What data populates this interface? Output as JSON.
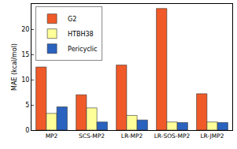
{
  "chart_data": {
    "type": "bar",
    "categories": [
      "MP2",
      "SCS-MP2",
      "LR-MP2",
      "LR-SOS-MP2",
      "LR-JMP2"
    ],
    "series": [
      {
        "name": "G2",
        "color": "#f05a28",
        "values": [
          12.5,
          7.0,
          12.9,
          24.1,
          7.2
        ]
      },
      {
        "name": "HTBH38",
        "color": "#ffff99",
        "values": [
          3.3,
          4.4,
          2.9,
          1.6,
          1.6
        ]
      },
      {
        "name": "Pericyclic",
        "color": "#2a62c0",
        "values": [
          4.6,
          1.6,
          2.0,
          1.5,
          1.5
        ]
      }
    ],
    "y_label": "MAE (kcal/mol)",
    "ylim": [
      0,
      25
    ],
    "yticks": [
      0,
      5,
      10,
      15,
      20
    ],
    "grid": false,
    "legend": "top left"
  }
}
